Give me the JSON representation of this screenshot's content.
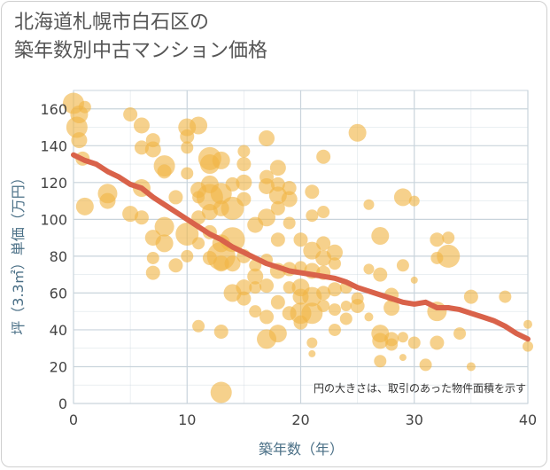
{
  "title_line1": "北海道札幌市白石区の",
  "title_line2": "築年数別中古マンション価格",
  "colors": {
    "bubble": "#f0b445",
    "trend": "#d9624a",
    "grid": "#c9d4dc",
    "axis_text": "#4a6f86"
  },
  "chart_data": {
    "type": "scatter",
    "xlabel": "築年数（年）",
    "ylabel": "坪（3.3㎡）単価（万円）",
    "xlim": [
      0,
      40
    ],
    "ylim": [
      0,
      170
    ],
    "x_ticks": [
      0,
      10,
      20,
      30,
      40
    ],
    "y_ticks": [
      0,
      20,
      40,
      60,
      80,
      100,
      120,
      140,
      160
    ],
    "annotation": "円の大きさは、取引のあった物件面積を示す",
    "trend": {
      "x": [
        0,
        1,
        2,
        3,
        4,
        5,
        6,
        7,
        8,
        9,
        10,
        11,
        12,
        13,
        14,
        15,
        16,
        17,
        18,
        19,
        20,
        21,
        22,
        23,
        24,
        25,
        26,
        27,
        28,
        29,
        30,
        31,
        32,
        33,
        34,
        35,
        36,
        37,
        38,
        39,
        40
      ],
      "y": [
        135,
        132,
        130,
        126,
        123,
        119,
        117,
        112,
        108,
        104,
        100,
        96,
        92,
        89,
        85,
        82,
        79,
        76,
        74,
        72,
        71,
        70,
        69,
        68,
        66,
        63,
        61,
        59,
        57,
        55,
        54,
        55,
        52,
        52,
        51,
        49,
        47,
        45,
        42,
        38,
        35
      ]
    },
    "points": [
      {
        "x": 0,
        "y": 163,
        "s": 12
      },
      {
        "x": 0.5,
        "y": 157,
        "s": 10
      },
      {
        "x": 0.3,
        "y": 150,
        "s": 12
      },
      {
        "x": 0.5,
        "y": 143,
        "s": 9
      },
      {
        "x": 1,
        "y": 161,
        "s": 7
      },
      {
        "x": 1,
        "y": 107,
        "s": 10
      },
      {
        "x": 0.8,
        "y": 133,
        "s": 8
      },
      {
        "x": 3,
        "y": 114,
        "s": 11
      },
      {
        "x": 3,
        "y": 110,
        "s": 9
      },
      {
        "x": 5,
        "y": 157,
        "s": 8
      },
      {
        "x": 5,
        "y": 103,
        "s": 9
      },
      {
        "x": 6,
        "y": 151,
        "s": 9
      },
      {
        "x": 6,
        "y": 139,
        "s": 8
      },
      {
        "x": 6,
        "y": 117,
        "s": 10
      },
      {
        "x": 6,
        "y": 101,
        "s": 8
      },
      {
        "x": 7,
        "y": 143,
        "s": 8
      },
      {
        "x": 7,
        "y": 138,
        "s": 9
      },
      {
        "x": 7,
        "y": 90,
        "s": 9
      },
      {
        "x": 7,
        "y": 71,
        "s": 8
      },
      {
        "x": 7,
        "y": 79,
        "s": 7
      },
      {
        "x": 8,
        "y": 129,
        "s": 12
      },
      {
        "x": 8,
        "y": 126,
        "s": 8
      },
      {
        "x": 8,
        "y": 96,
        "s": 11
      },
      {
        "x": 8,
        "y": 87,
        "s": 10
      },
      {
        "x": 9,
        "y": 112,
        "s": 8
      },
      {
        "x": 9,
        "y": 75,
        "s": 8
      },
      {
        "x": 10,
        "y": 150,
        "s": 10
      },
      {
        "x": 10,
        "y": 145,
        "s": 8
      },
      {
        "x": 10,
        "y": 139,
        "s": 7
      },
      {
        "x": 10,
        "y": 125,
        "s": 7
      },
      {
        "x": 10,
        "y": 92,
        "s": 13
      },
      {
        "x": 10,
        "y": 80,
        "s": 7
      },
      {
        "x": 11,
        "y": 151,
        "s": 10
      },
      {
        "x": 11,
        "y": 116,
        "s": 9
      },
      {
        "x": 11,
        "y": 112,
        "s": 7
      },
      {
        "x": 11,
        "y": 101,
        "s": 8
      },
      {
        "x": 11,
        "y": 87,
        "s": 7
      },
      {
        "x": 11,
        "y": 42,
        "s": 7
      },
      {
        "x": 12,
        "y": 133,
        "s": 13
      },
      {
        "x": 12,
        "y": 130,
        "s": 11
      },
      {
        "x": 12,
        "y": 119,
        "s": 10
      },
      {
        "x": 12,
        "y": 112,
        "s": 15
      },
      {
        "x": 12,
        "y": 104,
        "s": 9
      },
      {
        "x": 12,
        "y": 93,
        "s": 8
      },
      {
        "x": 12,
        "y": 79,
        "s": 8
      },
      {
        "x": 13,
        "y": 132,
        "s": 10
      },
      {
        "x": 13,
        "y": 114,
        "s": 12
      },
      {
        "x": 13,
        "y": 106,
        "s": 9
      },
      {
        "x": 13,
        "y": 87,
        "s": 10
      },
      {
        "x": 13,
        "y": 80,
        "s": 16
      },
      {
        "x": 13,
        "y": 76,
        "s": 9
      },
      {
        "x": 13,
        "y": 39,
        "s": 8
      },
      {
        "x": 13,
        "y": 6,
        "s": 12
      },
      {
        "x": 14,
        "y": 119,
        "s": 8
      },
      {
        "x": 14,
        "y": 106,
        "s": 13
      },
      {
        "x": 14,
        "y": 89,
        "s": 14
      },
      {
        "x": 14,
        "y": 76,
        "s": 9
      },
      {
        "x": 14,
        "y": 60,
        "s": 10
      },
      {
        "x": 15,
        "y": 137,
        "s": 7
      },
      {
        "x": 15,
        "y": 130,
        "s": 8
      },
      {
        "x": 15,
        "y": 120,
        "s": 9
      },
      {
        "x": 15,
        "y": 111,
        "s": 8
      },
      {
        "x": 15,
        "y": 80,
        "s": 8
      },
      {
        "x": 15,
        "y": 63,
        "s": 9
      },
      {
        "x": 15,
        "y": 57,
        "s": 8
      },
      {
        "x": 16,
        "y": 97,
        "s": 9
      },
      {
        "x": 16,
        "y": 75,
        "s": 7
      },
      {
        "x": 16,
        "y": 69,
        "s": 9
      },
      {
        "x": 16,
        "y": 63,
        "s": 7
      },
      {
        "x": 16,
        "y": 50,
        "s": 7
      },
      {
        "x": 17,
        "y": 144,
        "s": 9
      },
      {
        "x": 17,
        "y": 123,
        "s": 8
      },
      {
        "x": 17,
        "y": 118,
        "s": 9
      },
      {
        "x": 17,
        "y": 101,
        "s": 10
      },
      {
        "x": 17,
        "y": 78,
        "s": 7
      },
      {
        "x": 17,
        "y": 64,
        "s": 8
      },
      {
        "x": 17,
        "y": 47,
        "s": 8
      },
      {
        "x": 17,
        "y": 35,
        "s": 11
      },
      {
        "x": 18,
        "y": 128,
        "s": 9
      },
      {
        "x": 18,
        "y": 119,
        "s": 8
      },
      {
        "x": 18,
        "y": 113,
        "s": 10
      },
      {
        "x": 18,
        "y": 106,
        "s": 8
      },
      {
        "x": 18,
        "y": 89,
        "s": 8
      },
      {
        "x": 18,
        "y": 72,
        "s": 9
      },
      {
        "x": 18,
        "y": 55,
        "s": 8
      },
      {
        "x": 18,
        "y": 38,
        "s": 10
      },
      {
        "x": 19,
        "y": 117,
        "s": 8
      },
      {
        "x": 19,
        "y": 111,
        "s": 9
      },
      {
        "x": 19,
        "y": 98,
        "s": 7
      },
      {
        "x": 19,
        "y": 73,
        "s": 8
      },
      {
        "x": 19,
        "y": 63,
        "s": 7
      },
      {
        "x": 19,
        "y": 49,
        "s": 8
      },
      {
        "x": 20,
        "y": 89,
        "s": 8
      },
      {
        "x": 20,
        "y": 74,
        "s": 7
      },
      {
        "x": 20,
        "y": 63,
        "s": 10
      },
      {
        "x": 20,
        "y": 58,
        "s": 9
      },
      {
        "x": 20,
        "y": 49,
        "s": 12
      },
      {
        "x": 20,
        "y": 44,
        "s": 8
      },
      {
        "x": 21,
        "y": 115,
        "s": 8
      },
      {
        "x": 21,
        "y": 102,
        "s": 7
      },
      {
        "x": 21,
        "y": 83,
        "s": 10
      },
      {
        "x": 21,
        "y": 72,
        "s": 9
      },
      {
        "x": 21,
        "y": 58,
        "s": 11
      },
      {
        "x": 21,
        "y": 49,
        "s": 12
      },
      {
        "x": 21,
        "y": 33,
        "s": 6
      },
      {
        "x": 21,
        "y": 27,
        "s": 4
      },
      {
        "x": 22,
        "y": 134,
        "s": 8
      },
      {
        "x": 22,
        "y": 104,
        "s": 7
      },
      {
        "x": 22,
        "y": 87,
        "s": 8
      },
      {
        "x": 22,
        "y": 79,
        "s": 9
      },
      {
        "x": 22,
        "y": 71,
        "s": 8
      },
      {
        "x": 22,
        "y": 60,
        "s": 8
      },
      {
        "x": 22,
        "y": 53,
        "s": 7
      },
      {
        "x": 23,
        "y": 82,
        "s": 9
      },
      {
        "x": 23,
        "y": 76,
        "s": 7
      },
      {
        "x": 23,
        "y": 62,
        "s": 8
      },
      {
        "x": 23,
        "y": 51,
        "s": 7
      },
      {
        "x": 23,
        "y": 40,
        "s": 7
      },
      {
        "x": 24,
        "y": 63,
        "s": 7
      },
      {
        "x": 24,
        "y": 53,
        "s": 6
      },
      {
        "x": 24,
        "y": 46,
        "s": 7
      },
      {
        "x": 25,
        "y": 147,
        "s": 10
      },
      {
        "x": 25,
        "y": 57,
        "s": 7
      },
      {
        "x": 25,
        "y": 53,
        "s": 8
      },
      {
        "x": 26,
        "y": 108,
        "s": 6
      },
      {
        "x": 26,
        "y": 73,
        "s": 6
      },
      {
        "x": 26,
        "y": 47,
        "s": 5
      },
      {
        "x": 27,
        "y": 91,
        "s": 10
      },
      {
        "x": 27,
        "y": 70,
        "s": 8
      },
      {
        "x": 27,
        "y": 38,
        "s": 10
      },
      {
        "x": 27,
        "y": 34,
        "s": 9
      },
      {
        "x": 27,
        "y": 23,
        "s": 7
      },
      {
        "x": 28,
        "y": 59,
        "s": 8
      },
      {
        "x": 28,
        "y": 52,
        "s": 9
      },
      {
        "x": 28,
        "y": 35,
        "s": 8
      },
      {
        "x": 28,
        "y": 32,
        "s": 7
      },
      {
        "x": 29,
        "y": 112,
        "s": 10
      },
      {
        "x": 29,
        "y": 75,
        "s": 7
      },
      {
        "x": 29,
        "y": 36,
        "s": 6
      },
      {
        "x": 29,
        "y": 25,
        "s": 4
      },
      {
        "x": 30,
        "y": 110,
        "s": 6
      },
      {
        "x": 30,
        "y": 67,
        "s": 4
      },
      {
        "x": 30,
        "y": 33,
        "s": 7
      },
      {
        "x": 31,
        "y": 21,
        "s": 7
      },
      {
        "x": 32,
        "y": 89,
        "s": 8
      },
      {
        "x": 32,
        "y": 79,
        "s": 7
      },
      {
        "x": 32,
        "y": 50,
        "s": 11
      },
      {
        "x": 32,
        "y": 33,
        "s": 8
      },
      {
        "x": 33,
        "y": 90,
        "s": 7
      },
      {
        "x": 33,
        "y": 80,
        "s": 13
      },
      {
        "x": 34,
        "y": 38,
        "s": 7
      },
      {
        "x": 35,
        "y": 58,
        "s": 8
      },
      {
        "x": 35,
        "y": 20,
        "s": 5
      },
      {
        "x": 38,
        "y": 58,
        "s": 7
      },
      {
        "x": 40,
        "y": 43,
        "s": 5
      },
      {
        "x": 40,
        "y": 31,
        "s": 6
      }
    ]
  }
}
